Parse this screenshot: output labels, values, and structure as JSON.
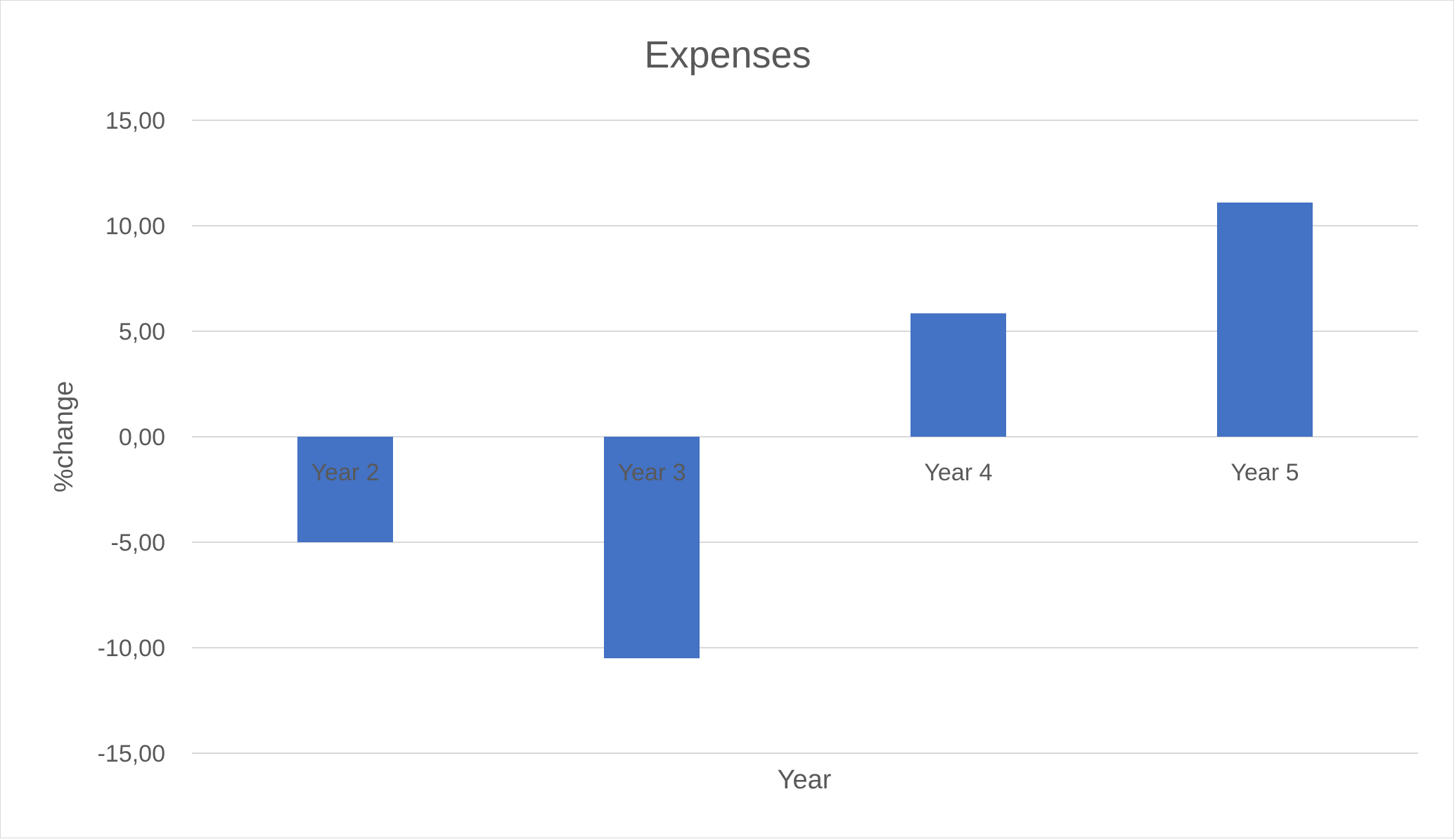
{
  "chart_data": {
    "type": "bar",
    "title": "Expenses",
    "xlabel": "Year",
    "ylabel": "%change",
    "categories": [
      "Year 2",
      "Year 3",
      "Year 4",
      "Year 5"
    ],
    "values": [
      -5.0,
      -10.5,
      5.85,
      11.1
    ],
    "ylim": [
      -15,
      15
    ],
    "yticks": [
      15,
      10,
      5,
      0,
      -5,
      -10,
      -15
    ],
    "ytick_labels": [
      "15,00",
      "10,00",
      "5,00",
      "0,00",
      "-5,00",
      "-10,00",
      "-15,00"
    ],
    "grid": true,
    "legend": "none",
    "bar_color": "#4472c4"
  }
}
